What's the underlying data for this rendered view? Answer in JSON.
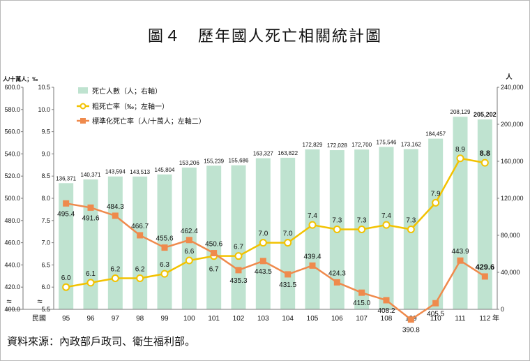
{
  "title": "圖４　歷年國人死亡相關統計圖",
  "source": "資料來源：內政部戶政司、衛生福利部。",
  "colors": {
    "bars": "#bfe3d0",
    "crude_line": "#f2c200",
    "crude_marker": "#f2c200",
    "std_line": "#ef8a4c",
    "std_marker": "#ef8a4c"
  },
  "chart_data": {
    "type": "bar",
    "categories": [
      "95",
      "96",
      "97",
      "98",
      "99",
      "100",
      "101",
      "102",
      "103",
      "104",
      "105",
      "106",
      "107",
      "108",
      "109",
      "110",
      "111",
      "112"
    ],
    "xlabel_prefix": "民國",
    "xlabel_suffix": "年",
    "axes": {
      "left1_title": "人/十萬人；‰",
      "right_title": "人",
      "left1": {
        "ylim": [
          400.0,
          600.0
        ],
        "ticks": [
          "400.0",
          "420.0",
          "440.0",
          "460.0",
          "480.0",
          "500.0",
          "520.0",
          "540.0",
          "560.0",
          "580.0",
          "600.0"
        ]
      },
      "left2": {
        "ylim": [
          5.5,
          10.5
        ],
        "ticks": [
          "5.5",
          "6.0",
          "6.5",
          "7.0",
          "7.5",
          "8.0",
          "8.5",
          "9.0",
          "9.5",
          "10.0",
          "10.5"
        ]
      },
      "right": {
        "ylim": [
          0,
          240000
        ],
        "ticks": [
          "0",
          "40,000",
          "80,000",
          "120,000",
          "160,000",
          "200,000",
          "240,000"
        ]
      }
    },
    "series": [
      {
        "name": "死亡人數（人；右軸）",
        "type": "bar",
        "axis": "right",
        "values": [
          136371,
          140371,
          143594,
          143513,
          145804,
          153206,
          155239,
          155686,
          163327,
          163822,
          172829,
          172028,
          172700,
          175546,
          173162,
          184457,
          208129,
          205202
        ],
        "labels": [
          "136,371",
          "140,371",
          "143,594",
          "143,513",
          "145,804",
          "153,206",
          "155,239",
          "155,686",
          "163,327",
          "163,822",
          "172,829",
          "172,028",
          "172,700",
          "175,546",
          "173,162",
          "184,457",
          "208,129",
          "205,202"
        ]
      },
      {
        "name": "粗死亡率（‰；左軸一）",
        "type": "line",
        "axis": "left2",
        "values": [
          6.0,
          6.1,
          6.2,
          6.2,
          6.3,
          6.6,
          6.7,
          6.7,
          7.0,
          7.0,
          7.4,
          7.3,
          7.3,
          7.4,
          7.3,
          7.9,
          8.9,
          8.8
        ],
        "labels": [
          "6.0",
          "6.1",
          "6.2",
          "6.2",
          "6.3",
          "6.6",
          "6.7",
          "6.7",
          "7.0",
          "7.0",
          "7.4",
          "7.3",
          "7.3",
          "7.4",
          "7.3",
          "7.9",
          "8.9",
          "8.8"
        ]
      },
      {
        "name": "標準化死亡率（人/十萬人；左軸二）",
        "type": "line",
        "axis": "left1",
        "values": [
          495.4,
          491.6,
          484.3,
          466.7,
          455.6,
          462.4,
          450.6,
          435.3,
          443.5,
          431.5,
          439.4,
          424.3,
          415.0,
          408.2,
          390.8,
          405.5,
          443.9,
          429.6
        ],
        "labels": [
          "495.4",
          "491.6",
          "484.3",
          "466.7",
          "455.6",
          "462.4",
          "450.6",
          "435.3",
          "443.5",
          "431.5",
          "439.4",
          "424.3",
          "415.0",
          "408.2",
          "390.8",
          "405.5",
          "443.9",
          "429.6"
        ]
      }
    ],
    "axis_break": "≈",
    "legend_position": "top-left",
    "grid": false
  }
}
